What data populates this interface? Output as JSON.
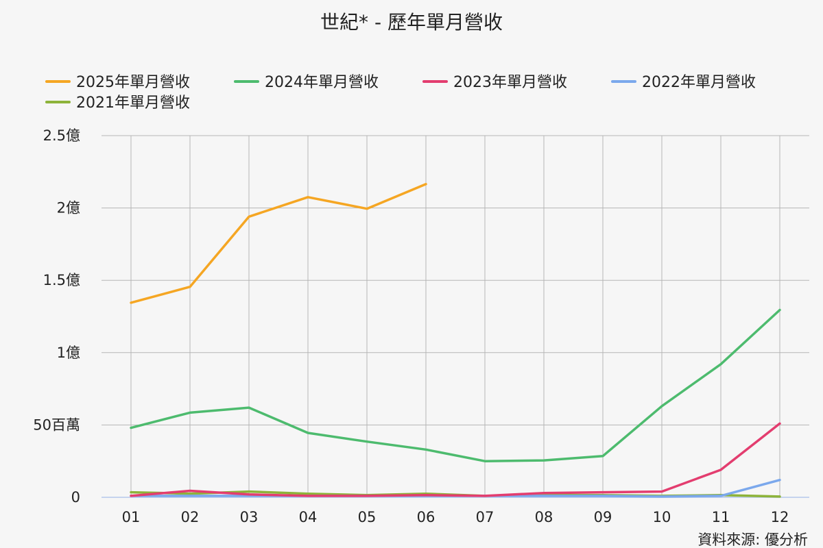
{
  "chart_data": {
    "type": "line",
    "title": "世紀* - 歷年單月營收",
    "source": "資料來源: 優分析",
    "categories": [
      "01",
      "02",
      "03",
      "04",
      "05",
      "06",
      "07",
      "08",
      "09",
      "10",
      "11",
      "12"
    ],
    "ylim": [
      0,
      250000000
    ],
    "y_ticks": [
      {
        "value": 0,
        "label": "0"
      },
      {
        "value": 50000000,
        "label": "50百萬"
      },
      {
        "value": 100000000,
        "label": "1億"
      },
      {
        "value": 150000000,
        "label": "1.5億"
      },
      {
        "value": 200000000,
        "label": "2億"
      },
      {
        "value": 250000000,
        "label": "2.5億"
      }
    ],
    "grid": true,
    "legend_position": "top",
    "series": [
      {
        "name": "2025年單月營收",
        "color": "#f5a623",
        "values": [
          134500000,
          145500000,
          194000000,
          207500000,
          199500000,
          216500000,
          null,
          null,
          null,
          null,
          null,
          null
        ]
      },
      {
        "name": "2024年單月營收",
        "color": "#4dbb6e",
        "values": [
          48000000,
          58500000,
          62000000,
          44500000,
          38500000,
          33000000,
          25000000,
          25500000,
          28500000,
          63000000,
          92000000,
          129500000
        ]
      },
      {
        "name": "2023年單月營收",
        "color": "#e33d6f",
        "values": [
          1000000,
          4500000,
          2000000,
          1000000,
          1000000,
          1500000,
          1000000,
          3000000,
          3500000,
          4000000,
          19000000,
          51000000
        ]
      },
      {
        "name": "2022年單月營收",
        "color": "#7ba8ec",
        "values": [
          1000000,
          1000000,
          1000000,
          1000000,
          1000000,
          1000000,
          1000000,
          1000000,
          1000000,
          500000,
          1000000,
          12000000
        ]
      },
      {
        "name": "2021年單月營收",
        "color": "#8db33a",
        "values": [
          3500000,
          2500000,
          4000000,
          2500000,
          1500000,
          2500000,
          1000000,
          1500000,
          1500000,
          1000000,
          1500000,
          500000
        ]
      }
    ]
  }
}
